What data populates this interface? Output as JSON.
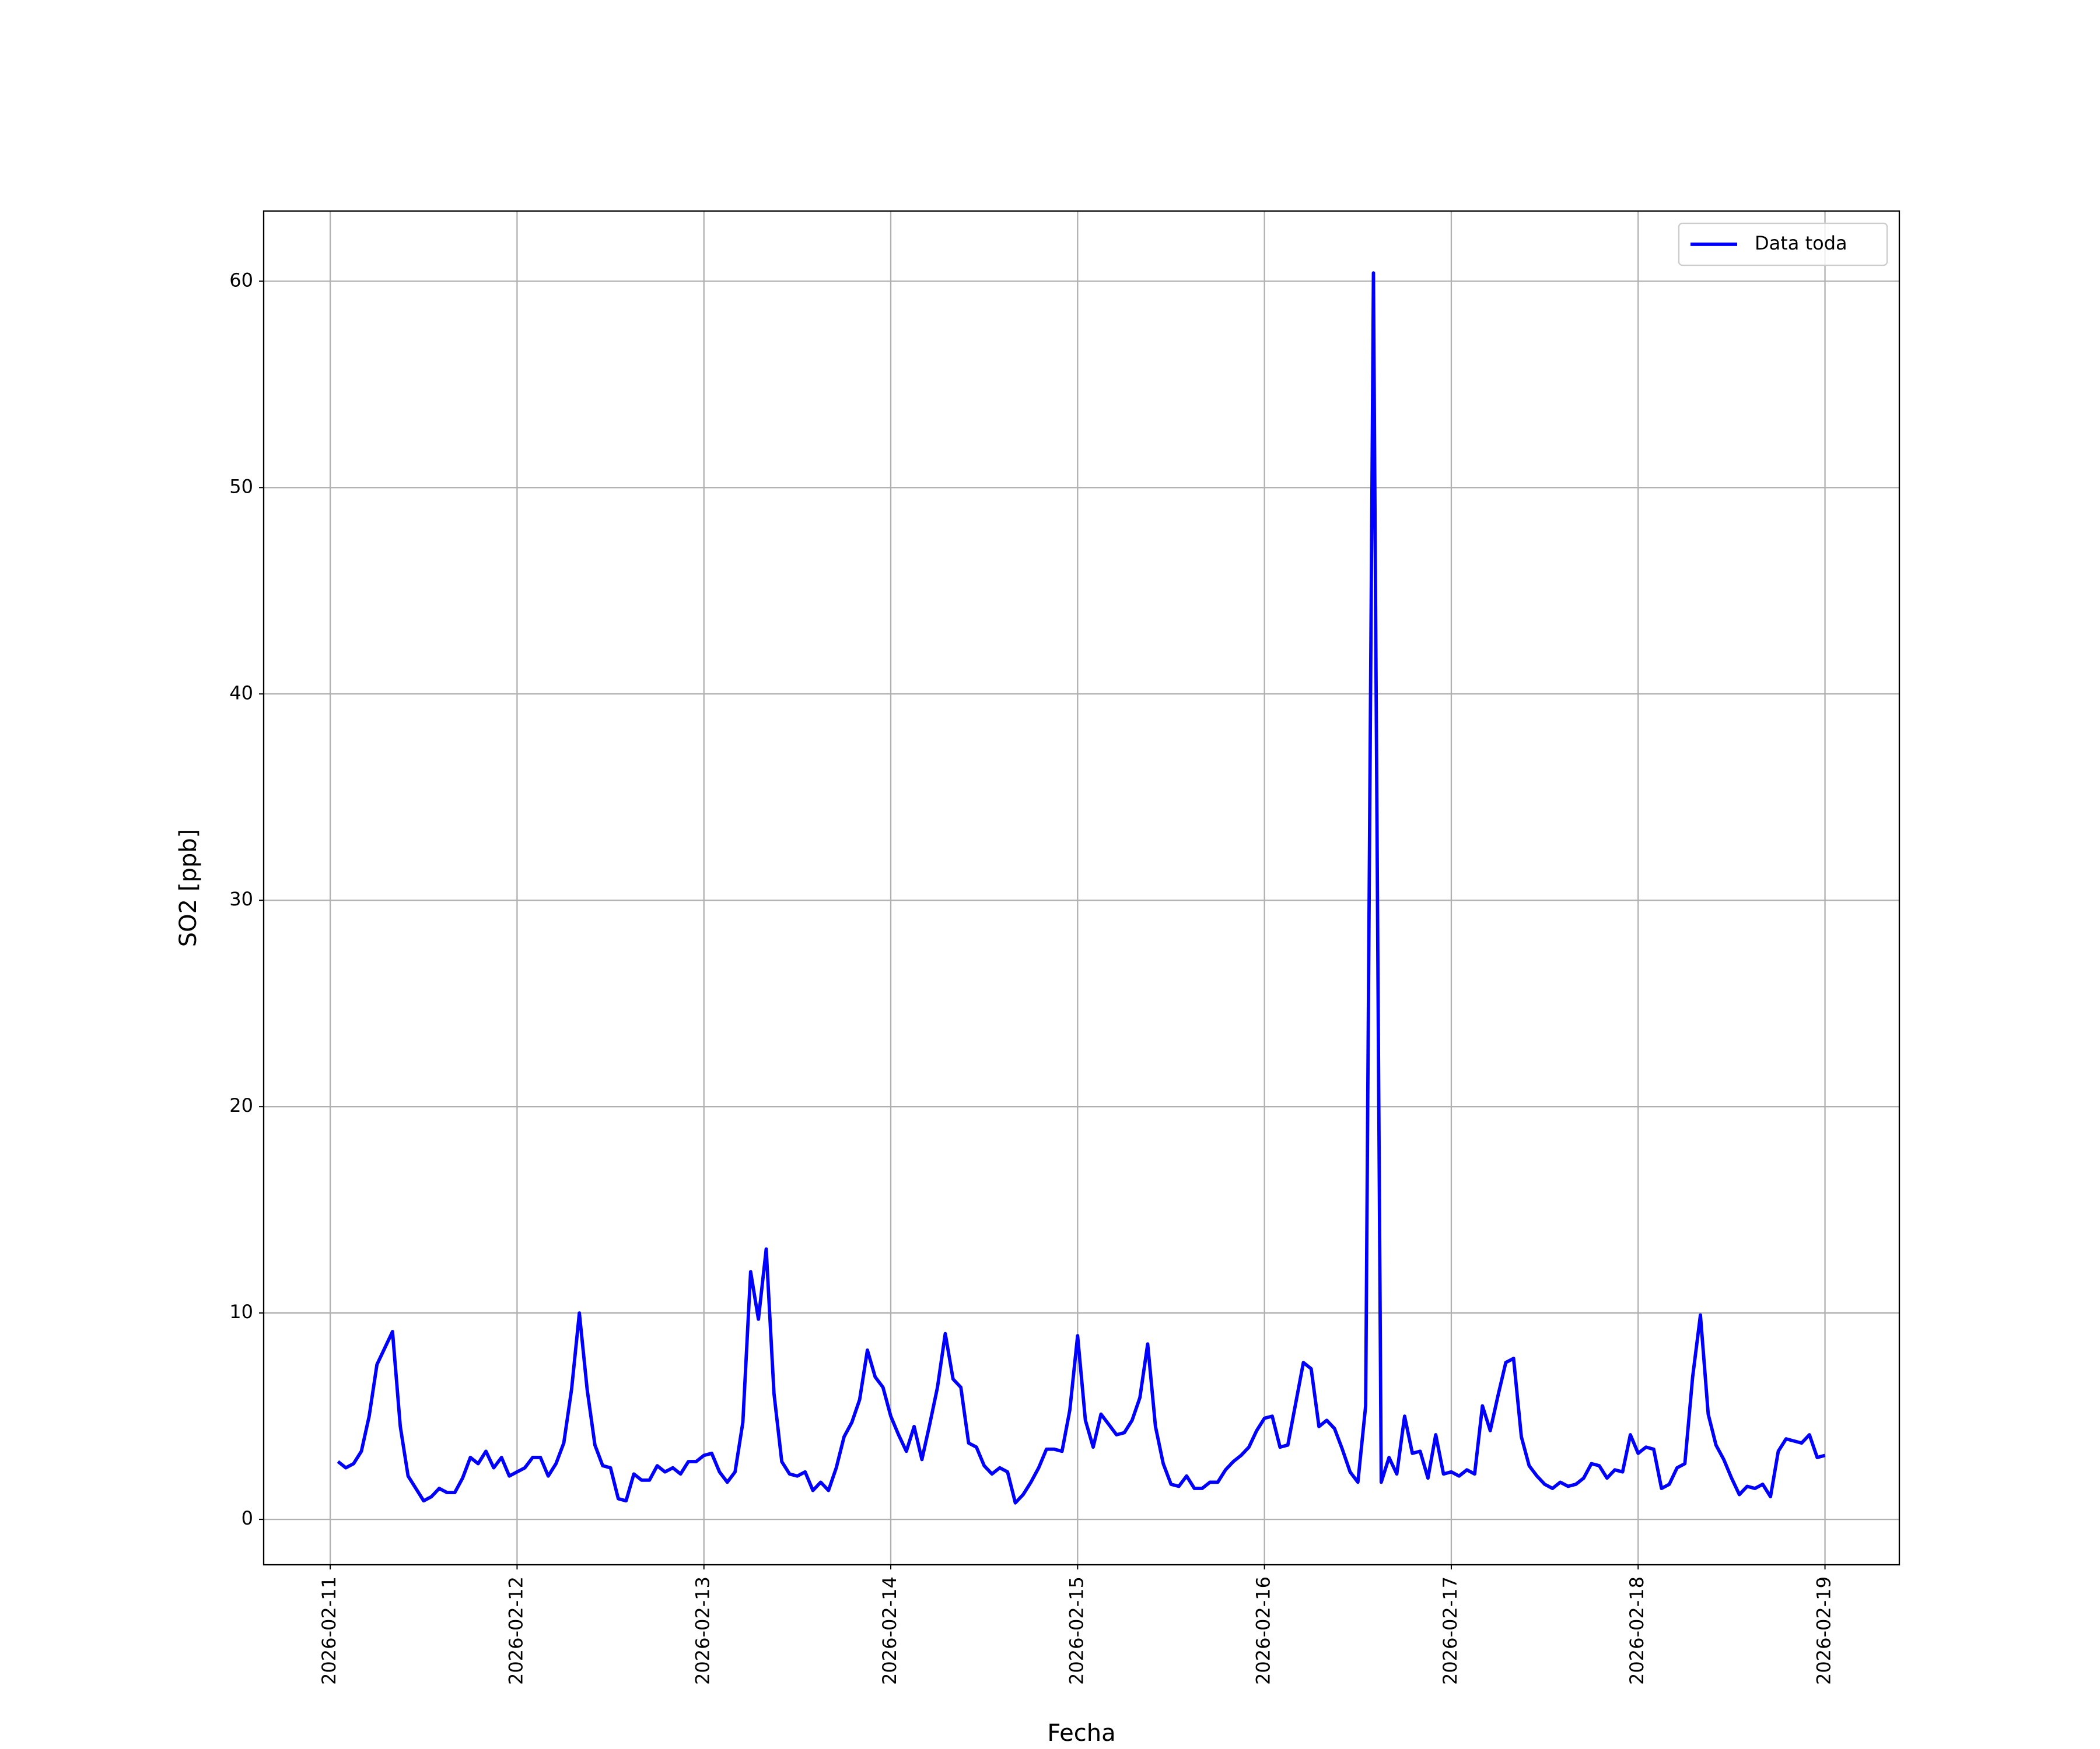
{
  "chart_data": {
    "type": "line",
    "x_label": "Fecha",
    "y_label": "SO2 [ppb]",
    "xlim": [
      "2026-02-10 15:27",
      "2026-02-19 09:33"
    ],
    "xticks": [
      "2026-02-11",
      "2026-02-12",
      "2026-02-13",
      "2026-02-14",
      "2026-02-15",
      "2026-02-16",
      "2026-02-17",
      "2026-02-18",
      "2026-02-19"
    ],
    "ylim": [
      -2.2,
      63.4
    ],
    "yticks": [
      0,
      10,
      20,
      30,
      40,
      50,
      60
    ],
    "grid": true,
    "legend": "upper right",
    "x": [
      "2026-02-11 01:00",
      "2026-02-11 02:00",
      "2026-02-11 03:00",
      "2026-02-11 04:00",
      "2026-02-11 05:00",
      "2026-02-11 06:00",
      "2026-02-11 07:00",
      "2026-02-11 08:00",
      "2026-02-11 09:00",
      "2026-02-11 10:00",
      "2026-02-11 11:00",
      "2026-02-11 12:00",
      "2026-02-11 13:00",
      "2026-02-11 14:00",
      "2026-02-11 15:00",
      "2026-02-11 16:00",
      "2026-02-11 17:00",
      "2026-02-11 18:00",
      "2026-02-11 19:00",
      "2026-02-11 20:00",
      "2026-02-11 21:00",
      "2026-02-11 22:00",
      "2026-02-11 23:00",
      "2026-02-12 00:00",
      "2026-02-12 01:00",
      "2026-02-12 02:00",
      "2026-02-12 03:00",
      "2026-02-12 04:00",
      "2026-02-12 05:00",
      "2026-02-12 06:00",
      "2026-02-12 07:00",
      "2026-02-12 08:00",
      "2026-02-12 09:00",
      "2026-02-12 10:00",
      "2026-02-12 11:00",
      "2026-02-12 12:00",
      "2026-02-12 13:00",
      "2026-02-12 14:00",
      "2026-02-12 15:00",
      "2026-02-12 16:00",
      "2026-02-12 17:00",
      "2026-02-12 18:00",
      "2026-02-12 19:00",
      "2026-02-12 20:00",
      "2026-02-12 21:00",
      "2026-02-12 22:00",
      "2026-02-12 23:00",
      "2026-02-13 00:00",
      "2026-02-13 01:00",
      "2026-02-13 02:00",
      "2026-02-13 03:00",
      "2026-02-13 04:00",
      "2026-02-13 05:00",
      "2026-02-13 06:00",
      "2026-02-13 07:00",
      "2026-02-13 08:00",
      "2026-02-13 09:00",
      "2026-02-13 10:00",
      "2026-02-13 11:00",
      "2026-02-13 12:00",
      "2026-02-13 13:00",
      "2026-02-13 14:00",
      "2026-02-13 15:00",
      "2026-02-13 16:00",
      "2026-02-13 17:00",
      "2026-02-13 18:00",
      "2026-02-13 19:00",
      "2026-02-13 20:00",
      "2026-02-13 21:00",
      "2026-02-13 22:00",
      "2026-02-13 23:00",
      "2026-02-14 00:00",
      "2026-02-14 01:00",
      "2026-02-14 02:00",
      "2026-02-14 03:00",
      "2026-02-14 04:00",
      "2026-02-14 05:00",
      "2026-02-14 06:00",
      "2026-02-14 07:00",
      "2026-02-14 08:00",
      "2026-02-14 09:00",
      "2026-02-14 10:00",
      "2026-02-14 11:00",
      "2026-02-14 12:00",
      "2026-02-14 13:00",
      "2026-02-14 14:00",
      "2026-02-14 15:00",
      "2026-02-14 16:00",
      "2026-02-14 17:00",
      "2026-02-14 18:00",
      "2026-02-14 19:00",
      "2026-02-14 20:00",
      "2026-02-14 21:00",
      "2026-02-14 22:00",
      "2026-02-14 23:00",
      "2026-02-15 00:00",
      "2026-02-15 01:00",
      "2026-02-15 02:00",
      "2026-02-15 03:00",
      "2026-02-15 04:00",
      "2026-02-15 05:00",
      "2026-02-15 06:00",
      "2026-02-15 07:00",
      "2026-02-15 08:00",
      "2026-02-15 09:00",
      "2026-02-15 10:00",
      "2026-02-15 11:00",
      "2026-02-15 12:00",
      "2026-02-15 13:00",
      "2026-02-15 14:00",
      "2026-02-15 15:00",
      "2026-02-15 16:00",
      "2026-02-15 17:00",
      "2026-02-15 18:00",
      "2026-02-15 19:00",
      "2026-02-15 20:00",
      "2026-02-15 21:00",
      "2026-02-15 22:00",
      "2026-02-15 23:00",
      "2026-02-16 00:00",
      "2026-02-16 01:00",
      "2026-02-16 02:00",
      "2026-02-16 03:00",
      "2026-02-16 04:00",
      "2026-02-16 05:00",
      "2026-02-16 06:00",
      "2026-02-16 07:00",
      "2026-02-16 08:00",
      "2026-02-16 09:00",
      "2026-02-16 10:00",
      "2026-02-16 11:00",
      "2026-02-16 12:00",
      "2026-02-16 13:00",
      "2026-02-16 14:00",
      "2026-02-16 15:00",
      "2026-02-16 16:00",
      "2026-02-16 17:00",
      "2026-02-16 18:00",
      "2026-02-16 19:00",
      "2026-02-16 20:00",
      "2026-02-16 21:00",
      "2026-02-16 22:00",
      "2026-02-16 23:00",
      "2026-02-17 00:00",
      "2026-02-17 01:00",
      "2026-02-17 02:00",
      "2026-02-17 03:00",
      "2026-02-17 04:00",
      "2026-02-17 05:00",
      "2026-02-17 06:00",
      "2026-02-17 07:00",
      "2026-02-17 08:00",
      "2026-02-17 09:00",
      "2026-02-17 10:00",
      "2026-02-17 11:00",
      "2026-02-17 12:00",
      "2026-02-17 13:00",
      "2026-02-17 14:00",
      "2026-02-17 15:00",
      "2026-02-17 16:00",
      "2026-02-17 17:00",
      "2026-02-17 18:00",
      "2026-02-17 19:00",
      "2026-02-17 20:00",
      "2026-02-17 21:00",
      "2026-02-17 22:00",
      "2026-02-17 23:00",
      "2026-02-18 00:00",
      "2026-02-18 01:00",
      "2026-02-18 02:00",
      "2026-02-18 03:00",
      "2026-02-18 04:00",
      "2026-02-18 05:00",
      "2026-02-18 06:00",
      "2026-02-18 07:00",
      "2026-02-18 08:00",
      "2026-02-18 09:00",
      "2026-02-18 10:00",
      "2026-02-18 11:00",
      "2026-02-18 12:00",
      "2026-02-18 13:00",
      "2026-02-18 14:00",
      "2026-02-18 15:00",
      "2026-02-18 16:00",
      "2026-02-18 17:00",
      "2026-02-18 18:00",
      "2026-02-18 19:00",
      "2026-02-18 20:00",
      "2026-02-18 21:00",
      "2026-02-18 22:00",
      "2026-02-18 23:00",
      "2026-02-19 00:00"
    ],
    "series": [
      {
        "name": "Data toda",
        "color": "#0000ff",
        "values": [
          2.8,
          2.5,
          2.7,
          3.3,
          5.0,
          7.5,
          8.3,
          9.1,
          4.5,
          2.1,
          1.5,
          0.9,
          1.1,
          1.5,
          1.3,
          1.3,
          2.0,
          3.0,
          2.7,
          3.3,
          2.5,
          3.0,
          2.1,
          2.3,
          2.5,
          3.0,
          3.0,
          2.1,
          2.7,
          3.7,
          6.3,
          10.0,
          6.3,
          3.6,
          2.6,
          2.5,
          1.0,
          0.9,
          2.2,
          1.9,
          1.9,
          2.6,
          2.3,
          2.5,
          2.2,
          2.8,
          2.8,
          3.1,
          3.2,
          2.3,
          1.8,
          2.3,
          4.7,
          12.0,
          9.7,
          13.1,
          6.1,
          2.8,
          2.2,
          2.1,
          2.3,
          1.4,
          1.8,
          1.4,
          2.5,
          4.0,
          4.7,
          5.8,
          8.2,
          6.9,
          6.4,
          5.0,
          4.1,
          3.3,
          4.5,
          2.9,
          4.6,
          6.4,
          9.0,
          6.8,
          6.4,
          3.7,
          3.5,
          2.6,
          2.2,
          2.5,
          2.3,
          0.8,
          1.2,
          1.8,
          2.5,
          3.4,
          3.4,
          3.3,
          5.3,
          8.9,
          4.8,
          3.5,
          5.1,
          4.6,
          4.1,
          4.2,
          4.8,
          5.9,
          8.5,
          4.5,
          2.7,
          1.7,
          1.6,
          2.1,
          1.5,
          1.5,
          1.8,
          1.8,
          2.4,
          2.8,
          3.1,
          3.5,
          4.3,
          4.9,
          5.0,
          3.5,
          3.6,
          5.6,
          7.6,
          7.3,
          4.5,
          4.8,
          4.4,
          3.4,
          2.3,
          1.8,
          5.5,
          60.4,
          1.8,
          3.0,
          2.2,
          5.0,
          3.2,
          3.3,
          2.0,
          4.1,
          2.2,
          2.3,
          2.1,
          2.4,
          2.2,
          5.5,
          4.3,
          6.0,
          7.6,
          7.8,
          4.0,
          2.6,
          2.1,
          1.7,
          1.5,
          1.8,
          1.6,
          1.7,
          2.0,
          2.7,
          2.6,
          2.0,
          2.4,
          2.3,
          4.1,
          3.2,
          3.5,
          3.4,
          1.5,
          1.7,
          2.5,
          2.7,
          6.9,
          9.9,
          5.1,
          3.6,
          2.9,
          2.0,
          1.2,
          1.6,
          1.5,
          1.7,
          1.1,
          3.3,
          3.9,
          3.8,
          3.7,
          4.1,
          3.0,
          3.1
        ]
      }
    ]
  }
}
